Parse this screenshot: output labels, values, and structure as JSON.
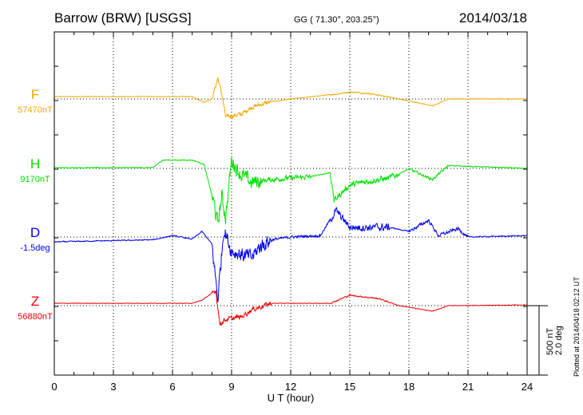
{
  "header": {
    "station": "Barrow (BRW)  [USGS]",
    "coords": "GG ( 71.30°, 203.25°)",
    "date": "2014/03/18"
  },
  "footer": {
    "plotted": "Plotted at 2014/04/18 02:12 UT",
    "scale_nt": "500 nT",
    "scale_deg": "2.0 deg"
  },
  "chart_data": {
    "type": "line",
    "xlabel": "U T (hour)",
    "xlim": [
      0,
      24
    ],
    "xticks": [
      "0",
      "3",
      "6",
      "9",
      "12",
      "15",
      "18",
      "21",
      "24"
    ],
    "grid": true,
    "scale": {
      "nT_per_division": 500,
      "deg_per_division": 2.0
    },
    "series": [
      {
        "name": "F",
        "baseline": "57470nT",
        "color": "#f5a800",
        "noise": [
          [
            0,
            24,
            4
          ],
          [
            8,
            11,
            25
          ],
          [
            14,
            17,
            8
          ]
        ],
        "points": [
          [
            0,
            17
          ],
          [
            7,
            17
          ],
          [
            7.6,
            -23
          ],
          [
            8.0,
            0
          ],
          [
            8.3,
            150
          ],
          [
            8.5,
            40
          ],
          [
            8.7,
            -130
          ],
          [
            9.5,
            -110
          ],
          [
            10,
            -60
          ],
          [
            11,
            -20
          ],
          [
            12,
            0
          ],
          [
            14.3,
            35
          ],
          [
            15,
            50
          ],
          [
            16,
            40
          ],
          [
            17.5,
            0
          ],
          [
            19.2,
            -50
          ],
          [
            20,
            0
          ],
          [
            24,
            0
          ]
        ]
      },
      {
        "name": "H",
        "baseline": "9170nT",
        "color": "#00e000",
        "noise": [
          [
            0,
            24,
            5
          ],
          [
            8,
            10.5,
            90
          ],
          [
            10.5,
            13,
            30
          ],
          [
            14,
            17.5,
            35
          ],
          [
            18,
            20,
            15
          ]
        ],
        "points": [
          [
            0,
            5
          ],
          [
            5,
            5
          ],
          [
            5.5,
            60
          ],
          [
            7,
            60
          ],
          [
            7.6,
            30
          ],
          [
            8.1,
            -250
          ],
          [
            8.3,
            -400
          ],
          [
            8.5,
            -200
          ],
          [
            8.7,
            -350
          ],
          [
            9,
            60
          ],
          [
            9.5,
            -50
          ],
          [
            10,
            -100
          ],
          [
            11,
            -80
          ],
          [
            13,
            -60
          ],
          [
            14,
            -30
          ],
          [
            14.2,
            -230
          ],
          [
            15,
            -120
          ],
          [
            16,
            -90
          ],
          [
            17,
            -70
          ],
          [
            18,
            -5
          ],
          [
            19.2,
            -80
          ],
          [
            20,
            20
          ],
          [
            24,
            0
          ]
        ]
      },
      {
        "name": "D",
        "baseline": "-1.5deg",
        "color": "#0000ee",
        "noise": [
          [
            0,
            24,
            6
          ],
          [
            8,
            11,
            90
          ],
          [
            11,
            14,
            15
          ],
          [
            14,
            17,
            45
          ],
          [
            18,
            21,
            20
          ]
        ],
        "points": [
          [
            0,
            -35
          ],
          [
            5,
            -20
          ],
          [
            6,
            10
          ],
          [
            7,
            -15
          ],
          [
            7.5,
            40
          ],
          [
            8,
            -50
          ],
          [
            8.3,
            -450
          ],
          [
            8.6,
            60
          ],
          [
            9,
            -100
          ],
          [
            10,
            -150
          ],
          [
            10.5,
            -60
          ],
          [
            11,
            -20
          ],
          [
            12,
            0
          ],
          [
            13.5,
            10
          ],
          [
            14.3,
            190
          ],
          [
            15,
            70
          ],
          [
            17,
            70
          ],
          [
            18,
            40
          ],
          [
            19,
            120
          ],
          [
            19.5,
            10
          ],
          [
            20.5,
            60
          ],
          [
            21,
            0
          ],
          [
            24,
            10
          ]
        ]
      },
      {
        "name": "Z",
        "baseline": "56880nT",
        "color": "#ee0000",
        "noise": [
          [
            0,
            24,
            3
          ],
          [
            8,
            11,
            30
          ],
          [
            14,
            17,
            8
          ]
        ],
        "points": [
          [
            0,
            17
          ],
          [
            7,
            17
          ],
          [
            7.5,
            40
          ],
          [
            8.2,
            110
          ],
          [
            8.4,
            -130
          ],
          [
            8.7,
            -100
          ],
          [
            9.5,
            -80
          ],
          [
            10,
            -30
          ],
          [
            11,
            17
          ],
          [
            14,
            17
          ],
          [
            15,
            75
          ],
          [
            16.5,
            50
          ],
          [
            17.5,
            0
          ],
          [
            19.2,
            -40
          ],
          [
            20,
            0
          ],
          [
            24,
            5
          ]
        ]
      }
    ]
  }
}
